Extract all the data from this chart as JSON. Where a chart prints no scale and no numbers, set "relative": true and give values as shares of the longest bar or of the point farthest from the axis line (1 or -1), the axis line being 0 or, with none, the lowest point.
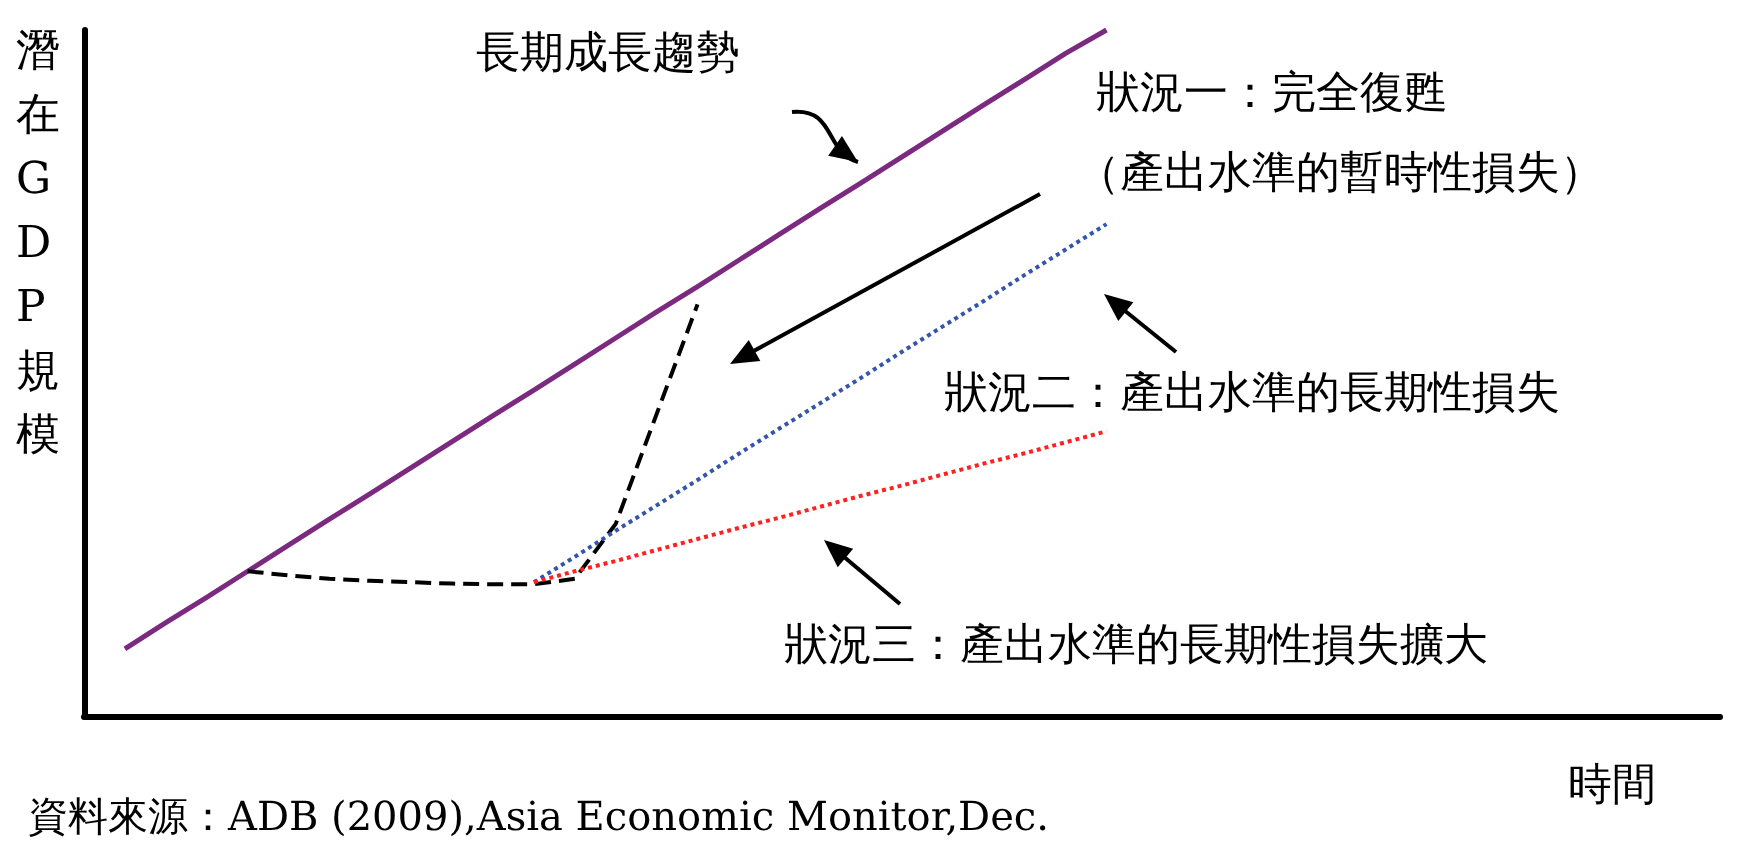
{
  "chart_data": {
    "type": "line",
    "relative": true,
    "ylabel": "潛在GDP規模",
    "xlabel": "時間",
    "grid": false,
    "marker": "none",
    "annotations": [
      "長期成長趨勢",
      "狀況一：完全復甦",
      "（產出水準的暫時性損失）",
      "狀況二：產出水準的長期性損失",
      "狀況三：產出水準的長期性損失擴大",
      "資料來源：ADB (2009),Asia Economic Monitor,Dec."
    ],
    "categories": [
      null,
      null,
      null,
      null,
      null,
      null,
      null,
      null,
      null,
      null,
      null,
      null,
      null,
      null,
      null,
      null,
      null,
      null,
      null,
      null,
      null,
      null,
      null,
      null,
      null,
      null,
      null,
      null,
      null,
      null,
      null,
      null,
      null,
      null,
      null,
      null,
      null,
      null,
      null,
      null,
      null
    ],
    "series": [
      {
        "color": "#7b2a7f",
        "line_style": "solid",
        "values": [
          null,
          0.098,
          0.136,
          0.173,
          0.211,
          0.249,
          0.287,
          0.324,
          0.362,
          0.4,
          0.438,
          0.475,
          0.513,
          0.551,
          0.589,
          0.626,
          0.664,
          0.702,
          0.74,
          0.777,
          0.815,
          0.853,
          0.891,
          0.928,
          0.966,
          1,
          null,
          null,
          null,
          null,
          null,
          null,
          null,
          null,
          null,
          null,
          null,
          null,
          null,
          null,
          null
        ]
      },
      {
        "color": "#000000",
        "line_style": "dashed",
        "values": [
          null,
          null,
          null,
          null,
          0.211,
          0.205,
          0.2,
          0.197,
          0.195,
          0.193,
          0.192,
          0.192,
          0.2,
          0.28,
          0.44,
          0.6,
          null,
          null,
          null,
          null,
          null,
          null,
          null,
          null,
          null,
          null,
          null,
          null,
          null,
          null,
          null,
          null,
          null,
          null,
          null,
          null,
          null,
          null,
          null,
          null,
          null
        ]
      },
      {
        "color": "#3355aa",
        "line_style": "dotted",
        "values": [
          null,
          null,
          null,
          null,
          null,
          null,
          null,
          null,
          null,
          null,
          null,
          0.195,
          0.232,
          0.27,
          0.307,
          0.344,
          0.382,
          0.419,
          0.456,
          0.493,
          0.531,
          0.568,
          0.605,
          0.643,
          0.68,
          0.717,
          null,
          null,
          null,
          null,
          null,
          null,
          null,
          null,
          null,
          null,
          null,
          null,
          null,
          null,
          null
        ]
      },
      {
        "color": "#ff2020",
        "line_style": "dotted",
        "values": [
          null,
          null,
          null,
          null,
          null,
          null,
          null,
          null,
          null,
          null,
          null,
          0.195,
          0.211,
          0.226,
          0.242,
          0.258,
          0.274,
          0.289,
          0.305,
          0.321,
          0.336,
          0.352,
          0.368,
          0.383,
          0.399,
          0.415,
          null,
          null,
          null,
          null,
          null,
          null,
          null,
          null,
          null,
          null,
          null,
          null,
          null,
          null,
          null
        ]
      }
    ]
  }
}
